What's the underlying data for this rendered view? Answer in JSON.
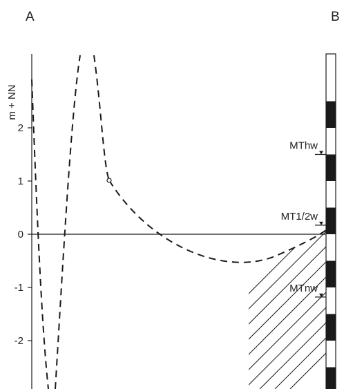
{
  "corner_labels": {
    "left": "A",
    "right": "B"
  },
  "axis": {
    "label": "m + NN",
    "ticks": [
      {
        "value": 2,
        "text": "2"
      },
      {
        "value": 1,
        "text": "1"
      },
      {
        "value": 0,
        "text": "0"
      },
      {
        "value": -1,
        "text": "-1"
      },
      {
        "value": -2,
        "text": "-2"
      }
    ]
  },
  "water_levels": [
    {
      "name": "MThw",
      "value": 1.5
    },
    {
      "name": "MT1/2w",
      "value": 0.17
    },
    {
      "name": "MTnw",
      "value": -1.18
    }
  ],
  "colors": {
    "ink": "#1a1a1a",
    "background": "#ffffff"
  }
}
